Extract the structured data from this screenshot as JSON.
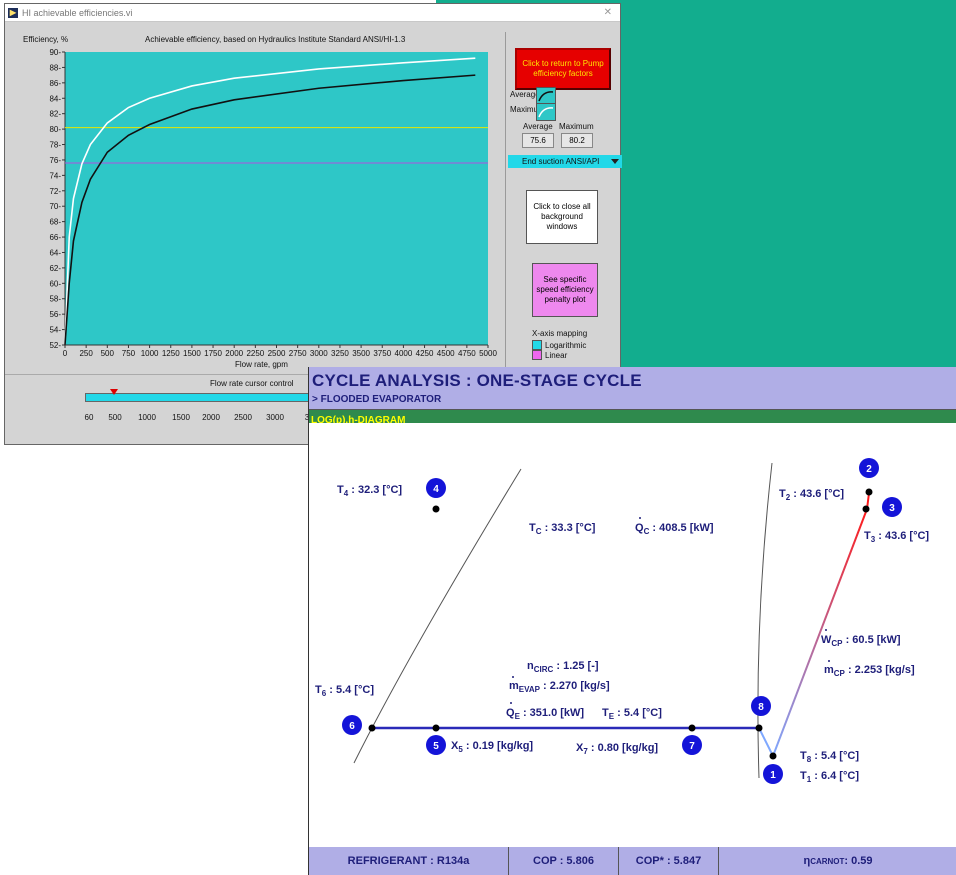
{
  "win1": {
    "title": "HI achievable efficiencies.vi",
    "app_icon": "▶",
    "close_glyph": "✕",
    "plot": {
      "ylabel": "Efficiency, %",
      "title": "Achievable efficiency, based on Hydraulics Institute Standard ANSI/HI-1.3",
      "xlabel": "Flow rate, gpm"
    },
    "btn_return": "Click to return to Pump efficiency factors",
    "legend": {
      "average": "Average",
      "maximum": "Maximum"
    },
    "values": {
      "average_label": "Average",
      "maximum_label": "Maximum",
      "average": "75.6",
      "maximum": "80.2"
    },
    "dropdown": "End suction ANSI/API",
    "btn_close": "Click to close all background windows",
    "btn_penalty": "See specific speed efficiency penalty plot",
    "xmap": {
      "title": "X-axis mapping",
      "log": "Logarithmic",
      "lin": "Linear"
    },
    "slider": {
      "title": "Flow rate cursor control",
      "ticks": [
        "60",
        "500",
        "1000",
        "1500",
        "2000",
        "2500",
        "3000",
        "3"
      ]
    }
  },
  "chart_data": {
    "type": "line",
    "ylabel": "Efficiency, %",
    "xlabel": "Flow rate, gpm",
    "xlim": [
      0,
      5000
    ],
    "ylim": [
      52,
      90
    ],
    "xticks": [
      0,
      250,
      500,
      750,
      1000,
      1250,
      1500,
      1750,
      2000,
      2250,
      2500,
      2750,
      3000,
      3250,
      3500,
      3750,
      4000,
      4250,
      4500,
      4750,
      5000
    ],
    "yticks": [
      52,
      54,
      56,
      58,
      60,
      62,
      64,
      66,
      68,
      70,
      72,
      74,
      76,
      78,
      80,
      82,
      84,
      86,
      88,
      90
    ],
    "series": [
      {
        "name": "Maximum",
        "color": "#ffffff",
        "x": [
          0,
          50,
          100,
          200,
          300,
          500,
          750,
          1000,
          1500,
          2000,
          3000,
          4000,
          4850
        ],
        "y": [
          52,
          66,
          71,
          75.5,
          78,
          80.8,
          82.8,
          84,
          85.6,
          86.6,
          87.8,
          88.6,
          89.2
        ]
      },
      {
        "name": "Average",
        "color": "#111111",
        "x": [
          0,
          50,
          100,
          200,
          300,
          500,
          750,
          1000,
          1500,
          2000,
          3000,
          4000,
          4850
        ],
        "y": [
          52,
          60,
          65.5,
          70.5,
          73.5,
          77,
          79.2,
          80.6,
          82.6,
          83.8,
          85.3,
          86.3,
          87
        ]
      }
    ],
    "hlines": [
      {
        "y": 80.2,
        "color": "#e8e800"
      },
      {
        "y": 75.6,
        "color": "#b050e0"
      }
    ]
  },
  "cycle": {
    "title": "CYCLE ANALYSIS : ONE-STAGE CYCLE",
    "subtitle": "> FLOODED EVAPORATOR",
    "tab": "LOG(p),h-DIAGRAM",
    "nodes": [
      "1",
      "2",
      "3",
      "4",
      "5",
      "6",
      "7",
      "8"
    ],
    "labels": {
      "t4": {
        "main": "T",
        "sub": "4",
        "rest": " : 32.3 [°C]"
      },
      "t2": {
        "main": "T",
        "sub": "2",
        "rest": " : 43.6 [°C]"
      },
      "t3": {
        "main": "T",
        "sub": "3",
        "rest": " : 43.6 [°C]"
      },
      "tc": {
        "main": "T",
        "sub": "C",
        "rest": " : 33.3 [°C]"
      },
      "qc": {
        "main": "Q",
        "sub": "C",
        "rest": " : 408.5 [kW]"
      },
      "wcp": {
        "main": "W",
        "sub": "CP",
        "rest": " : 60.5 [kW]"
      },
      "mcp": {
        "main": "m",
        "sub": "CP",
        "rest": " : 2.253 [kg/s]"
      },
      "ncirc": {
        "main": "n",
        "sub": "CIRC",
        "rest": " : 1.25 [-]"
      },
      "mevap": {
        "main": "m",
        "sub": "EVAP",
        "rest": " : 2.270 [kg/s]"
      },
      "t6": {
        "main": "T",
        "sub": "6",
        "rest": " : 5.4 [°C]"
      },
      "qe": {
        "main": "Q",
        "sub": "E",
        "rest": " : 351.0 [kW]"
      },
      "te": {
        "main": "T",
        "sub": "E",
        "rest": " : 5.4 [°C]"
      },
      "x5": {
        "main": "X",
        "sub": "5",
        "rest": " : 0.19 [kg/kg]"
      },
      "x7": {
        "main": "X",
        "sub": "7",
        "rest": " : 0.80 [kg/kg]"
      },
      "t8": {
        "main": "T",
        "sub": "8",
        "rest": " : 5.4 [°C]"
      },
      "t1": {
        "main": "T",
        "sub": "1",
        "rest": " : 6.4 [°C]"
      }
    },
    "footer": {
      "refrigerant": "REFRIGERANT : R134a",
      "cop": "COP : 5.806",
      "cop_star": "COP* : 5.847",
      "eta_main": "η",
      "eta_sub": "CARNOT",
      "eta_rest": " :  0.59"
    }
  }
}
